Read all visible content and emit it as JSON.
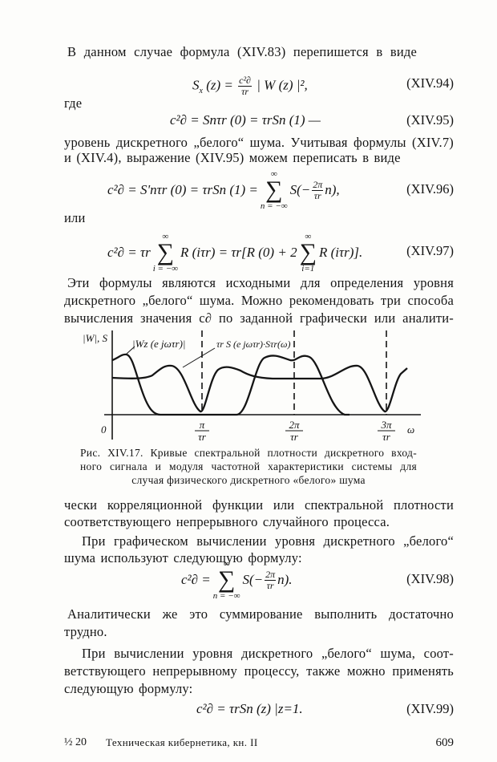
{
  "page": {
    "p1": "В данном случае формула (XIV.83) перепишется в виде",
    "eq94": {
      "lhs": "S",
      "lhs_sub": "x",
      "lhs_arg": "(z) =",
      "num": "c²∂",
      "den": "τr",
      "rhs": "| W (z) |²,",
      "number": "(XIV.94)"
    },
    "where": "где",
    "eq95": {
      "text": "c²∂ = Snτr (0) = τrSn (1) —",
      "number": "(XIV.95)"
    },
    "p2": [
      "уровень дискретного „белого“ шума. Учитывая формулы (XIV.7)",
      "и (XIV.4), выражение (XIV.95) можем переписать в виде"
    ],
    "eq96": {
      "lhs": "c²∂ = S'nτr (0) = τrSn (1) =",
      "sum_top": "∞",
      "sum_sym": "∑",
      "sum_bottom": "n = −∞",
      "body": "S(−",
      "num": "2π",
      "den": "τr",
      "tail": "n),",
      "number": "(XIV.96)"
    },
    "or": "или",
    "eq97": {
      "lhs": "c²∂ = τr",
      "sum_top": "∞",
      "sum_sym": "∑",
      "sum_bottom": "i = −∞",
      "mid": "R (iτr) = τr[R (0) + 2",
      "sum2_top": "∞",
      "sum2_bottom": "i=1",
      "tail": "R (iτr)].",
      "number": "(XIV.97)"
    },
    "p3": [
      "Эти формулы являются исходными для определения уровня",
      "дискретного „белого“ шума. Можно рекомендовать три способа",
      "вычисления значения c∂ по заданной графически или аналити-"
    ],
    "figure": {
      "y_label": "|W|, S",
      "curve1_label": "|Wz (e jωτr)|",
      "curve2_label": "τr S (e jωτr)·Sτr(ω)",
      "origin": "0",
      "x_label": "ω",
      "ticks": [
        {
          "num": "π",
          "den": "τr"
        },
        {
          "num": "2π",
          "den": "τr"
        },
        {
          "num": "3π",
          "den": "τr"
        }
      ]
    },
    "caption": [
      "Рис. XIV.17. Кривые спектральной плотности дискретного вход-",
      "ного сигнала и модуля частотной характеристики системы для",
      "случая физического дискретного «белого» шума"
    ],
    "p4": [
      "чески корреляционной функции или спектральной плотности",
      "соответствующего непрерывного случайного процесса."
    ],
    "p5": [
      "При графическом вычислении уровня дискретного „белого“",
      "шума используют следующую формулу:"
    ],
    "eq98": {
      "lhs": "c²∂ =",
      "sum_top": "∞",
      "sum_sym": "∑",
      "sum_bottom": "n = −∞",
      "body": "S(−",
      "num": "2π",
      "den": "τr",
      "tail": "n).",
      "number": "(XIV.98)"
    },
    "p6": [
      "Аналитически же это суммирование выполнить достаточно",
      "трудно."
    ],
    "p7": [
      "При вычислении уровня дискретного „белого“ шума, соот-",
      "ветствующего непрерывному процессу, также можно применять",
      "следующую формулу:"
    ],
    "eq99": {
      "text": "c²∂ = τrSn (z) |z=1.",
      "number": "(XIV.99)"
    },
    "footer": {
      "signature": "½ 20",
      "book": "Техническая кибернетика, кн. II",
      "page_number": "609"
    }
  }
}
